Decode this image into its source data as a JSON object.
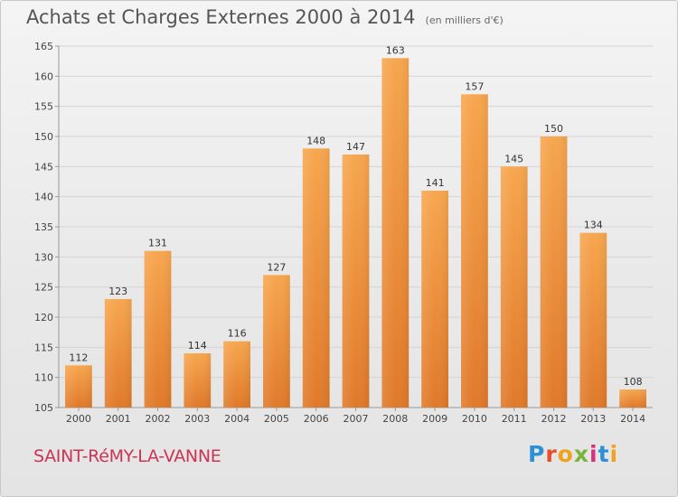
{
  "header": {
    "title": "Achats et Charges Externes 2000 à 2014",
    "subtitle": "(en milliers d'€)"
  },
  "footer": {
    "commune": "SAINT-RéMY-LA-VANNE",
    "logo": {
      "letters": [
        "P",
        "r",
        "o",
        "x",
        "i",
        "t",
        "i"
      ],
      "colors": [
        "#2e8fd6",
        "#e94e2a",
        "#f0a21c",
        "#7ab539",
        "#d6327a",
        "#2e8fd6",
        "#f0a21c"
      ]
    }
  },
  "chart_data": {
    "type": "bar",
    "title": "Achats et Charges Externes 2000 à 2014",
    "subtitle": "(en milliers d'€)",
    "categories": [
      "2000",
      "2001",
      "2002",
      "2003",
      "2004",
      "2005",
      "2006",
      "2007",
      "2008",
      "2009",
      "2010",
      "2011",
      "2012",
      "2013",
      "2014"
    ],
    "values": [
      112,
      123,
      131,
      114,
      116,
      127,
      148,
      147,
      163,
      141,
      157,
      145,
      150,
      134,
      108
    ],
    "ylim": [
      105,
      165
    ],
    "yticks": [
      105,
      110,
      115,
      120,
      125,
      130,
      135,
      140,
      145,
      150,
      155,
      160,
      165
    ],
    "grid": true,
    "bar_color_top": "#f7a64e",
    "bar_color_bottom": "#e0792a"
  }
}
